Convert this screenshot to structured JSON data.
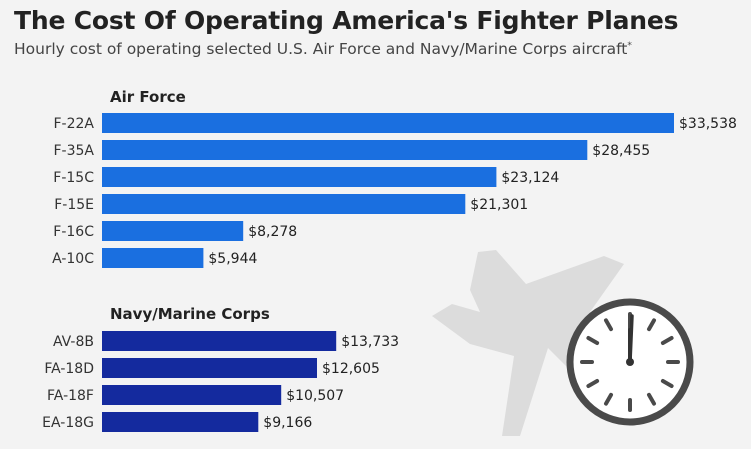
{
  "header": {
    "title": "The Cost Of Operating America's Fighter Planes",
    "subtitle": "Hourly cost of operating selected U.S. Air Force and Navy/Marine Corps aircraft",
    "subtitle_mark": "*"
  },
  "icons": [
    "fighter-jet-silhouette-icon",
    "clock-icon"
  ],
  "colors": {
    "background": "#f3f3f3",
    "air_force_bar": "#1a6fe0",
    "navy_bar": "#142a9e",
    "silhouette": "#dcdcdc",
    "clock_face": "#ffffff",
    "clock_ink": "#4a4a4a"
  },
  "chart_data": {
    "type": "bar",
    "orientation": "horizontal",
    "groups": [
      {
        "name": "Air Force",
        "categories": [
          "F-22A",
          "F-35A",
          "F-15C",
          "F-15E",
          "F-16C",
          "A-10C"
        ],
        "values": [
          33538,
          28455,
          23124,
          21301,
          8278,
          5944
        ],
        "labels": [
          "$33,538",
          "$28,455",
          "$23,124",
          "$21,301",
          "$8,278",
          "$5,944"
        ]
      },
      {
        "name": "Navy/Marine Corps",
        "categories": [
          "AV-8B",
          "FA-18D",
          "FA-18F",
          "EA-18G"
        ],
        "values": [
          13733,
          12605,
          10507,
          9166
        ],
        "labels": [
          "$13,733",
          "$12,605",
          "$10,507",
          "$9,166"
        ]
      }
    ],
    "xlim": [
      0,
      33538
    ],
    "grid": false,
    "legend": "none"
  }
}
